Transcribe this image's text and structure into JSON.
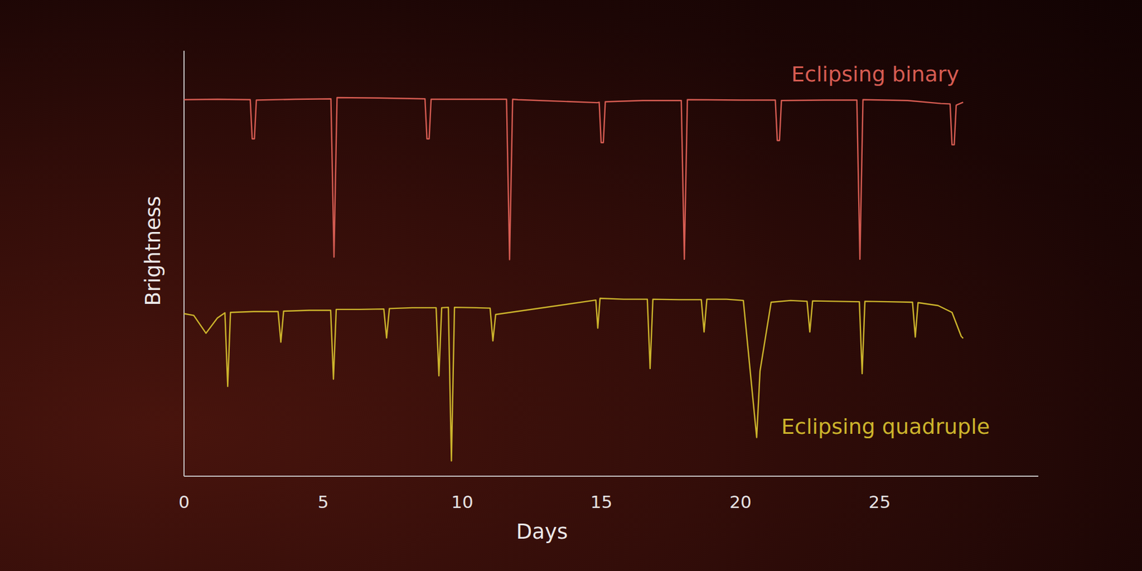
{
  "chart_data": {
    "type": "line",
    "x_label": "Days",
    "y_label": "Brightness",
    "xlim": [
      0,
      30.7
    ],
    "xticks": [
      0,
      5,
      10,
      15,
      20,
      25
    ],
    "ylim": [
      0,
      100
    ],
    "grid": false,
    "tick_labels": "x",
    "series": [
      {
        "name": "Eclipsing binary",
        "color": "#d65c52",
        "line_style": "solid",
        "x": [
          0,
          1.2,
          2.38,
          2.45,
          2.53,
          2.6,
          4.0,
          5.28,
          5.39,
          5.5,
          7.0,
          8.66,
          8.73,
          8.81,
          8.88,
          10.5,
          11.59,
          11.7,
          11.81,
          12.0,
          14.85,
          14.92,
          14.99,
          15.07,
          15.14,
          16.5,
          17.87,
          17.98,
          18.09,
          20.0,
          21.25,
          21.32,
          21.4,
          21.47,
          23.0,
          24.18,
          24.29,
          24.4,
          26.0,
          27.2,
          27.53,
          27.6,
          27.68,
          27.75,
          28.0
        ],
        "values": [
          88.5,
          88.6,
          88.5,
          79.3,
          79.3,
          88.4,
          88.6,
          88.7,
          51.5,
          89.0,
          88.9,
          88.7,
          79.3,
          79.3,
          88.6,
          88.6,
          88.6,
          50.9,
          88.6,
          88.5,
          87.8,
          87.9,
          78.4,
          78.4,
          88.0,
          88.3,
          88.3,
          51.0,
          88.5,
          88.4,
          88.4,
          78.9,
          78.9,
          88.3,
          88.4,
          88.4,
          51.0,
          88.5,
          88.3,
          87.6,
          87.5,
          77.9,
          77.9,
          87.2,
          87.9
        ]
      },
      {
        "name": "Eclipsing quadruple",
        "color": "#ccb42c",
        "line_style": "solid",
        "x": [
          0,
          0.35,
          0.79,
          1.2,
          1.47,
          1.57,
          1.67,
          2.5,
          3.38,
          3.48,
          3.58,
          4.5,
          5.27,
          5.37,
          5.47,
          6.3,
          7.18,
          7.28,
          7.38,
          8.2,
          9.06,
          9.16,
          9.26,
          9.5,
          9.61,
          9.72,
          10.5,
          11.0,
          11.1,
          11.2,
          14.8,
          14.87,
          14.95,
          15.8,
          16.65,
          16.75,
          16.85,
          17.8,
          18.59,
          18.69,
          18.79,
          19.5,
          20.1,
          20.58,
          20.7,
          21.1,
          21.8,
          22.39,
          22.49,
          22.59,
          23.4,
          24.27,
          24.37,
          24.47,
          25.3,
          26.18,
          26.28,
          26.38,
          27.1,
          27.6,
          27.93,
          28.0
        ],
        "values": [
          38.2,
          37.8,
          33.6,
          37.2,
          38.4,
          21.1,
          38.5,
          38.7,
          38.7,
          31.5,
          38.8,
          39.0,
          39.0,
          22.8,
          39.2,
          39.2,
          39.3,
          32.5,
          39.4,
          39.6,
          39.6,
          23.6,
          39.6,
          39.7,
          3.6,
          39.7,
          39.6,
          39.5,
          31.8,
          38.0,
          41.4,
          34.8,
          41.8,
          41.6,
          41.6,
          25.3,
          41.6,
          41.5,
          41.5,
          33.9,
          41.6,
          41.6,
          41.3,
          9.1,
          24.7,
          40.9,
          41.3,
          41.1,
          33.9,
          41.2,
          41.1,
          41.0,
          24.1,
          41.1,
          41.0,
          40.9,
          32.7,
          40.8,
          40.1,
          38.5,
          32.9,
          32.4
        ]
      }
    ]
  }
}
